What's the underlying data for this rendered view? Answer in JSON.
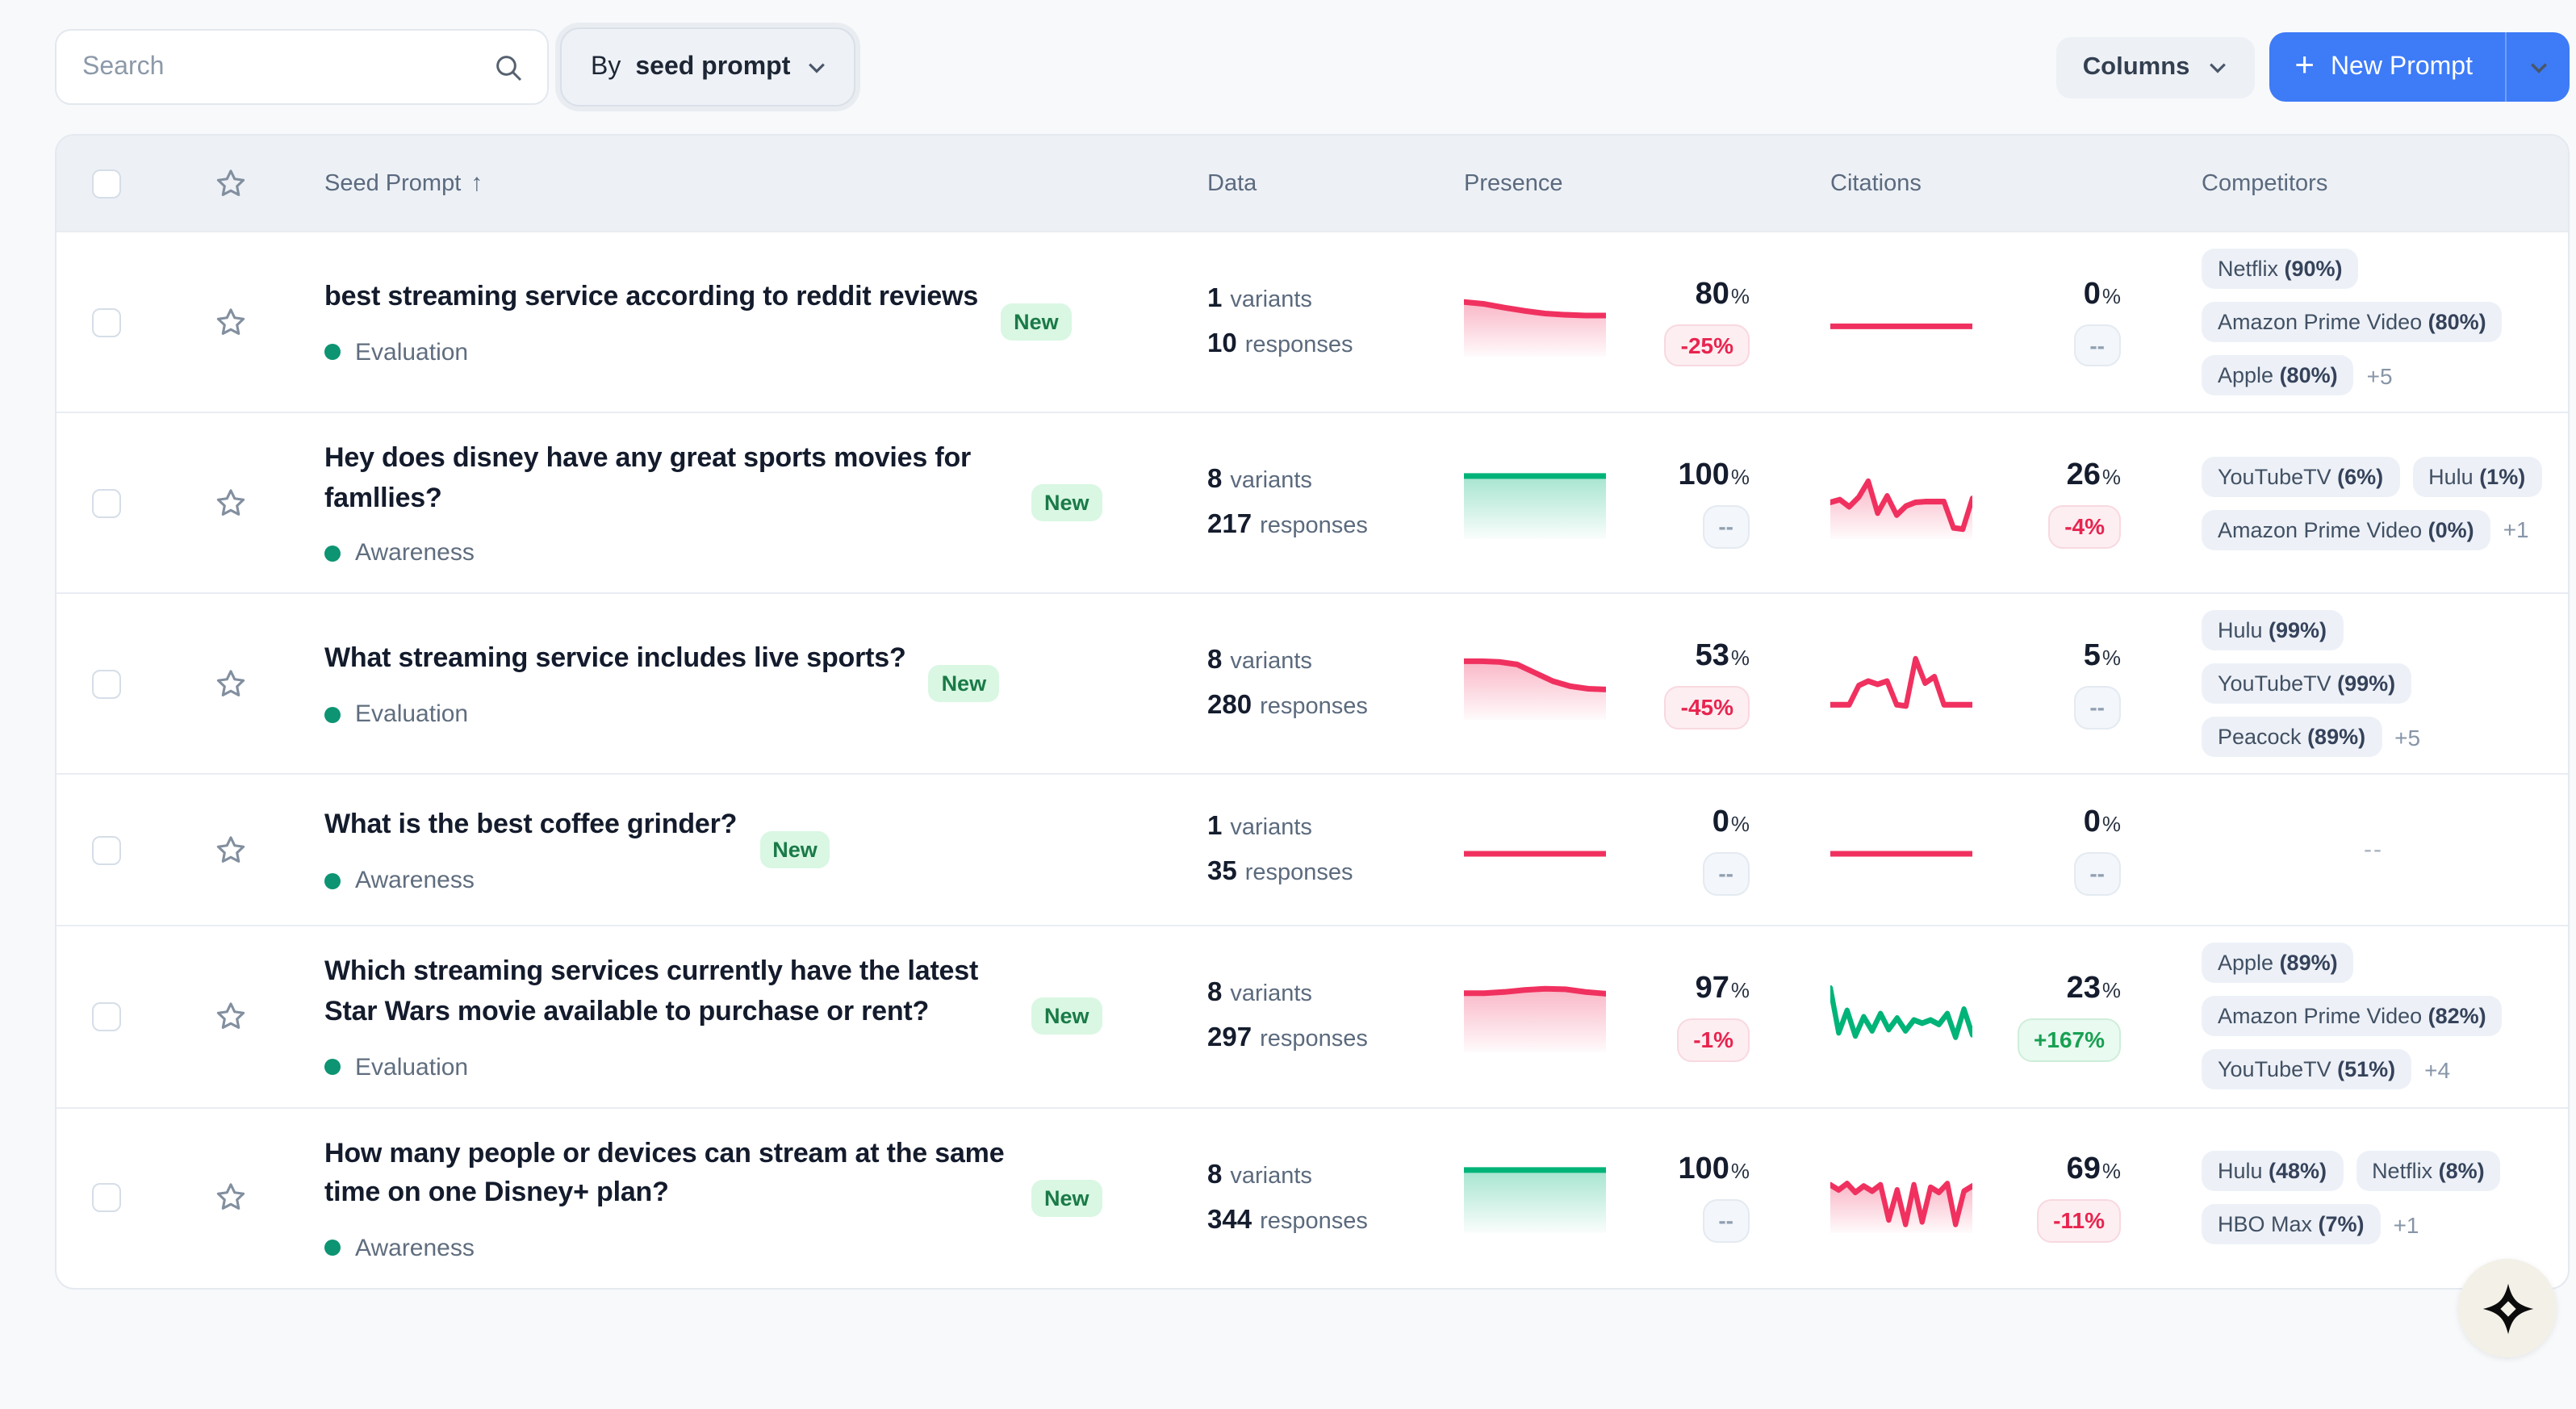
{
  "toolbar": {
    "search_placeholder": "Search",
    "group_by": {
      "prefix": "By",
      "value": "seed prompt"
    },
    "columns_label": "Columns",
    "new_prompt_label": "New Prompt",
    "new_prompt_plus": "+"
  },
  "colors": {
    "accent_blue": "#3d7bf7",
    "spark_red": "#f0315f",
    "spark_green": "#00b378",
    "new_badge_bg": "#d9f7e3",
    "new_badge_text": "#1a7a47"
  },
  "table": {
    "headers": {
      "seed_prompt": "Seed Prompt",
      "sort_arrow": "↑",
      "data": "Data",
      "presence": "Presence",
      "citations": "Citations",
      "competitors": "Competitors"
    },
    "rows": [
      {
        "seed": "best streaming service according to reddit reviews",
        "badge": "New",
        "status": "Evaluation",
        "variants": "1",
        "variants_label": "variants",
        "responses": "10",
        "responses_label": "responses",
        "presence": {
          "value": "80",
          "unit": "%",
          "delta": "-25%",
          "delta_type": "negative",
          "spark": {
            "color": "red",
            "fill": true,
            "values": [
              80,
              77,
              71,
              66,
              62,
              60,
              59,
              59
            ]
          }
        },
        "citations": {
          "value": "0",
          "unit": "%",
          "delta": "--",
          "delta_type": "neutral",
          "spark": {
            "color": "red",
            "fill": false,
            "values": [
              42,
              42,
              42,
              42
            ]
          }
        },
        "competitors": {
          "chips": [
            {
              "name": "Netflix",
              "pct": "(90%)"
            },
            {
              "name": "Amazon Prime Video",
              "pct": "(80%)"
            },
            {
              "name": "Apple",
              "pct": "(80%)"
            }
          ],
          "more": "+5",
          "empty_label": ""
        }
      },
      {
        "seed": "Hey does disney have any great sports movies for famllies?",
        "badge": "New",
        "status": "Awareness",
        "variants": "8",
        "variants_label": "variants",
        "responses": "217",
        "responses_label": "responses",
        "presence": {
          "value": "100",
          "unit": "%",
          "delta": "--",
          "delta_type": "neutral",
          "spark": {
            "color": "green",
            "fill": true,
            "values": [
              93,
              93,
              93,
              93
            ]
          }
        },
        "citations": {
          "value": "26",
          "unit": "%",
          "delta": "-4%",
          "delta_type": "negative",
          "spark": {
            "color": "red",
            "fill": true,
            "values": [
              52,
              56,
              45,
              60,
              85,
              35,
              62,
              32,
              46,
              52,
              53,
              53,
              53,
              12,
              10,
              58
            ]
          }
        },
        "competitors": {
          "chips": [
            {
              "name": "YouTubeTV",
              "pct": "(6%)"
            },
            {
              "name": "Hulu",
              "pct": "(1%)"
            },
            {
              "name": "Amazon Prime Video",
              "pct": "(0%)"
            }
          ],
          "more": "+1",
          "empty_label": ""
        }
      },
      {
        "seed": "What streaming service includes live sports?",
        "badge": "New",
        "status": "Evaluation",
        "variants": "8",
        "variants_label": "variants",
        "responses": "280",
        "responses_label": "responses",
        "presence": {
          "value": "53",
          "unit": "%",
          "delta": "-45%",
          "delta_type": "negative",
          "spark": {
            "color": "red",
            "fill": true,
            "values": [
              86,
              86,
              85,
              81,
              68,
              55,
              47,
              43,
              42
            ]
          }
        },
        "citations": {
          "value": "5",
          "unit": "%",
          "delta": "--",
          "delta_type": "neutral",
          "spark": {
            "color": "red",
            "fill": false,
            "values": [
              18,
              18,
              18,
              48,
              55,
              50,
              55,
              18,
              16,
              90,
              52,
              62,
              18,
              18,
              18,
              18
            ]
          }
        },
        "competitors": {
          "chips": [
            {
              "name": "Hulu",
              "pct": "(99%)"
            },
            {
              "name": "YouTubeTV",
              "pct": "(99%)"
            },
            {
              "name": "Peacock",
              "pct": "(89%)"
            }
          ],
          "more": "+5",
          "empty_label": ""
        }
      },
      {
        "seed": "What is the best coffee grinder?",
        "badge": "New",
        "status": "Awareness",
        "variants": "1",
        "variants_label": "variants",
        "responses": "35",
        "responses_label": "responses",
        "presence": {
          "value": "0",
          "unit": "%",
          "delta": "--",
          "delta_type": "neutral",
          "spark": {
            "color": "red",
            "fill": false,
            "values": [
              45,
              45,
              45,
              45
            ]
          }
        },
        "citations": {
          "value": "0",
          "unit": "%",
          "delta": "--",
          "delta_type": "neutral",
          "spark": {
            "color": "red",
            "fill": false,
            "values": [
              45,
              45,
              45,
              45
            ]
          }
        },
        "competitors": {
          "chips": [],
          "more": "",
          "empty_label": "--"
        }
      },
      {
        "seed": "Which streaming services currently have the latest Star Wars movie available to purchase or rent?",
        "badge": "New",
        "status": "Evaluation",
        "variants": "8",
        "variants_label": "variants",
        "responses": "297",
        "responses_label": "responses",
        "presence": {
          "value": "97",
          "unit": "%",
          "delta": "-1%",
          "delta_type": "negative",
          "spark": {
            "color": "red",
            "fill": true,
            "values": [
              87,
              87,
              89,
              92,
              94,
              93,
              89,
              86
            ]
          }
        },
        "citations": {
          "value": "23",
          "unit": "%",
          "delta": "+167%",
          "delta_type": "positive",
          "spark": {
            "color": "green",
            "fill": false,
            "values": [
              95,
              25,
              60,
              20,
              50,
              28,
              55,
              30,
              48,
              28,
              45,
              40,
              45,
              38,
              55,
              18,
              62,
              22
            ]
          }
        },
        "competitors": {
          "chips": [
            {
              "name": "Apple",
              "pct": "(89%)"
            },
            {
              "name": "Amazon Prime Video",
              "pct": "(82%)"
            },
            {
              "name": "YouTubeTV",
              "pct": "(51%)"
            }
          ],
          "more": "+4",
          "empty_label": ""
        }
      },
      {
        "seed": "How many people or devices can stream at the same time on one Disney+ plan?",
        "badge": "New",
        "status": "Awareness",
        "variants": "8",
        "variants_label": "variants",
        "responses": "344",
        "responses_label": "responses",
        "presence": {
          "value": "100",
          "unit": "%",
          "delta": "--",
          "delta_type": "neutral",
          "spark": {
            "color": "green",
            "fill": true,
            "values": [
              93,
              93,
              93,
              93
            ]
          }
        },
        "citations": {
          "value": "69",
          "unit": "%",
          "delta": "-11%",
          "delta_type": "negative",
          "spark": {
            "color": "red",
            "fill": true,
            "values": [
              70,
              62,
              72,
              58,
              68,
              60,
              70,
              15,
              62,
              8,
              70,
              12,
              66,
              58,
              72,
              8,
              60,
              68
            ]
          }
        },
        "competitors": {
          "chips": [
            {
              "name": "Hulu",
              "pct": "(48%)"
            },
            {
              "name": "Netflix",
              "pct": "(8%)"
            },
            {
              "name": "HBO Max",
              "pct": "(7%)"
            }
          ],
          "more": "+1",
          "empty_label": ""
        }
      }
    ]
  }
}
